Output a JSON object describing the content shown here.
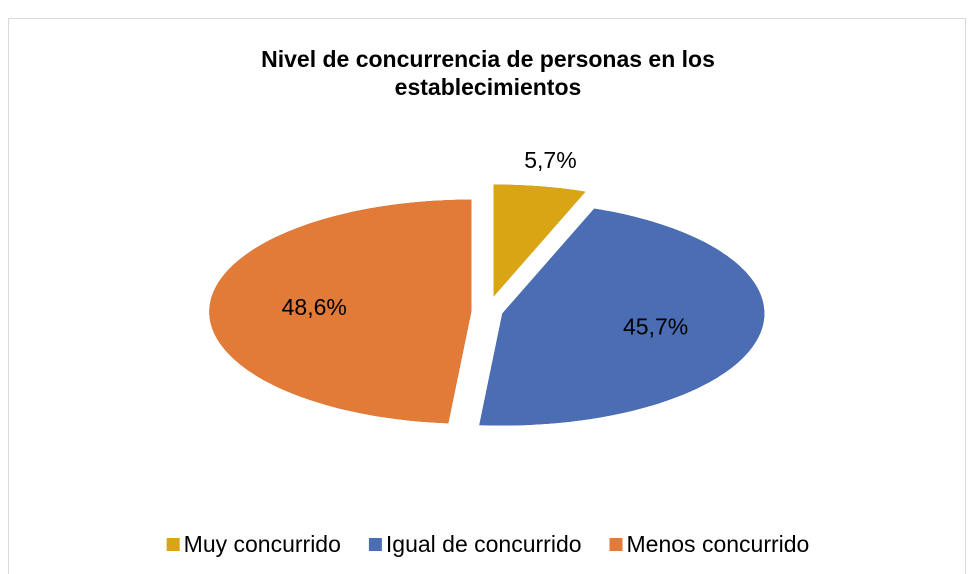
{
  "chart_data": {
    "type": "pie",
    "title": "Nivel de concurrencia de personas en los establecimientos",
    "categories": [
      "Muy concurrido",
      "Igual de concurrido",
      "Menos concurrido"
    ],
    "values": [
      5.7,
      45.7,
      48.6
    ],
    "value_labels": [
      "5,7%",
      "45,7%",
      "48,6%"
    ],
    "colors": [
      "#d9a514",
      "#4a6db3",
      "#e27a38"
    ],
    "legend": "bottom"
  }
}
